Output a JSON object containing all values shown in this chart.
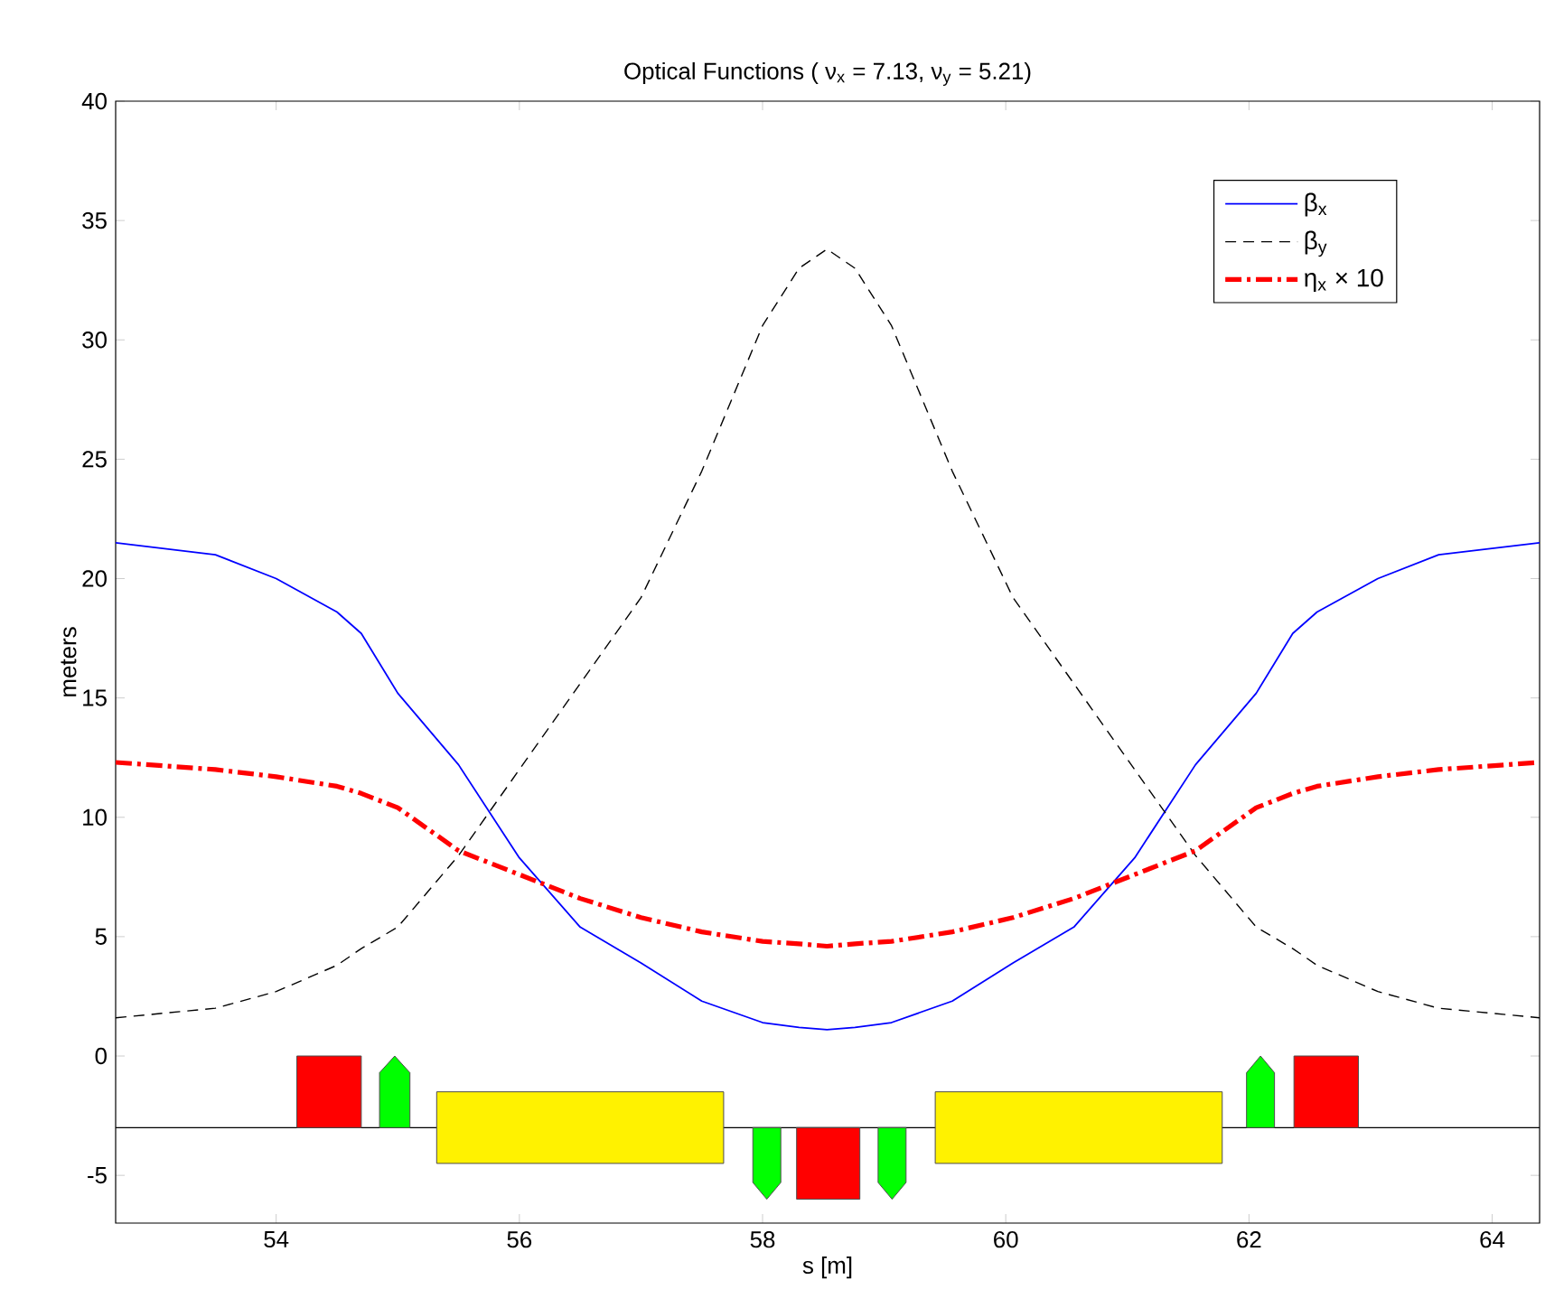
{
  "chart_data": {
    "type": "line",
    "title": "Optical Functions ( ν$_{x}$ = 7.13,  ν$_{y}$ = 5.21)",
    "xlabel": "s [m]",
    "ylabel": "meters",
    "xlim": [
      52.68,
      64.39
    ],
    "ylim": [
      -7,
      40
    ],
    "xticks": [
      54,
      56,
      58,
      60,
      62,
      64
    ],
    "yticks": [
      -5,
      0,
      5,
      10,
      15,
      20,
      25,
      30,
      35,
      40
    ],
    "grid": false,
    "legend": "top right",
    "marker": "none",
    "x": [
      52.68,
      53.5,
      54,
      54.5,
      54.7,
      55,
      55.5,
      56,
      56.5,
      57,
      57.5,
      58,
      58.3,
      58.53,
      58.76,
      59.06,
      59.56,
      60.06,
      60.56,
      61.06,
      61.56,
      62.06,
      62.36,
      62.56,
      63.06,
      63.56,
      64.39
    ],
    "series": [
      {
        "name": "β$_{x}$",
        "color": "#0000ff",
        "line_style": "solid",
        "values": [
          21.5,
          21.0,
          20.0,
          18.6,
          17.7,
          15.2,
          12.2,
          8.3,
          5.4,
          3.9,
          2.3,
          1.4,
          1.2,
          1.1,
          1.2,
          1.4,
          2.3,
          3.9,
          5.4,
          8.3,
          12.2,
          15.2,
          17.7,
          18.6,
          20.0,
          21.0,
          21.5
        ]
      },
      {
        "name": "β$_{y}$",
        "color": "#000000",
        "line_style": "dashed",
        "values": [
          1.6,
          2.0,
          2.7,
          3.8,
          4.5,
          5.4,
          8.4,
          12.0,
          15.6,
          19.2,
          24.5,
          30.6,
          33.0,
          33.8,
          33.0,
          30.6,
          24.5,
          19.2,
          15.6,
          12.0,
          8.4,
          5.4,
          4.5,
          3.8,
          2.7,
          2.0,
          1.6
        ]
      },
      {
        "name": "η$_{x}$ × 10",
        "color": "#ff0000",
        "line_style": "dashdot",
        "values": [
          12.3,
          12.0,
          11.7,
          11.3,
          11.0,
          10.4,
          8.6,
          7.6,
          6.6,
          5.8,
          5.2,
          4.8,
          4.7,
          4.6,
          4.7,
          4.8,
          5.2,
          5.8,
          6.6,
          7.6,
          8.6,
          10.4,
          11.0,
          11.3,
          11.7,
          12.0,
          12.3
        ]
      }
    ],
    "ref_lines": [
      {
        "axis": "y",
        "value": -3,
        "color": "#000000"
      }
    ]
  }
}
